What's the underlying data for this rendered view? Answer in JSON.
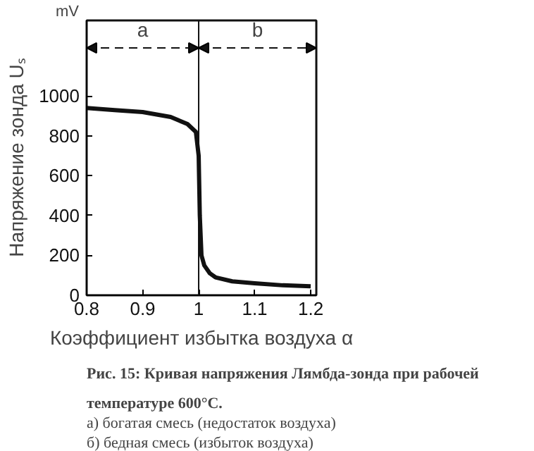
{
  "chart_data": {
    "type": "line",
    "xlabel": "Коэффициент избытка воздуха α",
    "ylabel": "Напряжение зонда Uₛ",
    "x": [
      0.8,
      0.85,
      0.9,
      0.95,
      0.98,
      0.995,
      1.0,
      1.002,
      1.005,
      1.01,
      1.02,
      1.03,
      1.06,
      1.1,
      1.15,
      1.2
    ],
    "series": [
      {
        "color": "#111111",
        "values": [
          940,
          930,
          920,
          895,
          860,
          820,
          700,
          400,
          200,
          150,
          110,
          90,
          70,
          60,
          50,
          45
        ]
      }
    ],
    "xlim": [
      0.8,
      1.21
    ],
    "ylim": [
      0,
      1380
    ],
    "xticks": [
      {
        "value": 0.8,
        "label": "0.8"
      },
      {
        "value": 0.9,
        "label": "0.9"
      },
      1,
      {
        "value": 1.1,
        "label": "1.1"
      },
      {
        "value": 1.2,
        "label": "1.2"
      }
    ],
    "yticks": [
      0,
      200,
      400,
      600,
      800,
      1000
    ],
    "ref_lines": [
      {
        "axis": "x",
        "value": 1
      }
    ],
    "annotations": [
      "mV",
      "a",
      "b",
      "Рис. 15: Кривая напряжения Лямбда-зонда при рабочей",
      "температуре 600°C.",
      "а) богатая смесь (недостаток воздуха)",
      "б) бедная смесь (избыток воздуха)"
    ],
    "grid": false,
    "marker": "none",
    "line_style": "solid"
  }
}
